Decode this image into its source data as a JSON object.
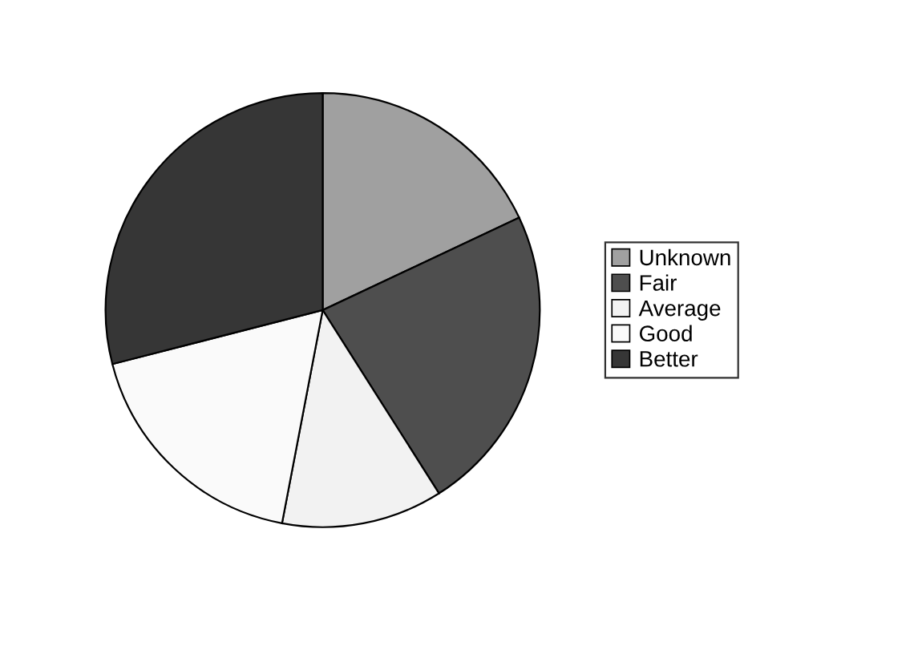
{
  "chart_data": {
    "type": "pie",
    "categories": [
      "Unknown",
      "Fair",
      "Average",
      "Good",
      "Better"
    ],
    "values": [
      18,
      23,
      12,
      18,
      29
    ],
    "colors": [
      "#a0a0a0",
      "#4e4e4e",
      "#f2f2f2",
      "#fafafa",
      "#363636"
    ],
    "legend": "right"
  }
}
